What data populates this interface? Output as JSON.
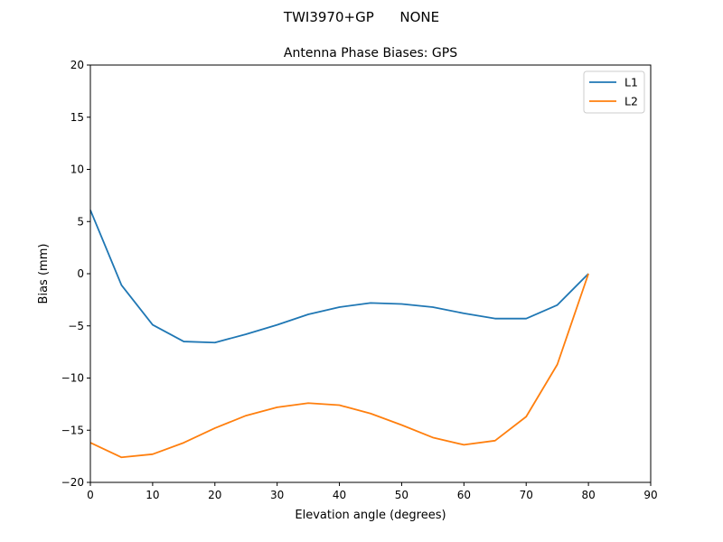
{
  "figure": {
    "suptitle": "TWI3970+GP      NONE"
  },
  "chart_data": {
    "type": "line",
    "title": "Antenna Phase Biases: GPS",
    "xlabel": "Elevation angle (degrees)",
    "ylabel": "Bias (mm)",
    "xlim": [
      0,
      90
    ],
    "ylim": [
      -20,
      20
    ],
    "xticks": [
      0,
      10,
      20,
      30,
      40,
      50,
      60,
      70,
      80,
      90
    ],
    "yticks": [
      -20,
      -15,
      -10,
      -5,
      0,
      5,
      10,
      15,
      20
    ],
    "grid": false,
    "legend_position": "upper right",
    "x": [
      0,
      5,
      10,
      15,
      20,
      25,
      30,
      35,
      40,
      45,
      50,
      55,
      60,
      65,
      70,
      75,
      80
    ],
    "series": [
      {
        "name": "L1",
        "color": "#1f77b4",
        "values": [
          6.1,
          -1.1,
          -4.9,
          -6.5,
          -6.6,
          -5.8,
          -4.9,
          -3.9,
          -3.2,
          -2.8,
          -2.9,
          -3.2,
          -3.8,
          -4.3,
          -4.3,
          -3.0,
          0.0
        ]
      },
      {
        "name": "L2",
        "color": "#ff7f0e",
        "values": [
          -16.2,
          -17.6,
          -17.3,
          -16.2,
          -14.8,
          -13.6,
          -12.8,
          -12.4,
          -12.6,
          -13.4,
          -14.5,
          -15.7,
          -16.4,
          -16.0,
          -13.7,
          -8.7,
          0.0
        ]
      }
    ]
  }
}
